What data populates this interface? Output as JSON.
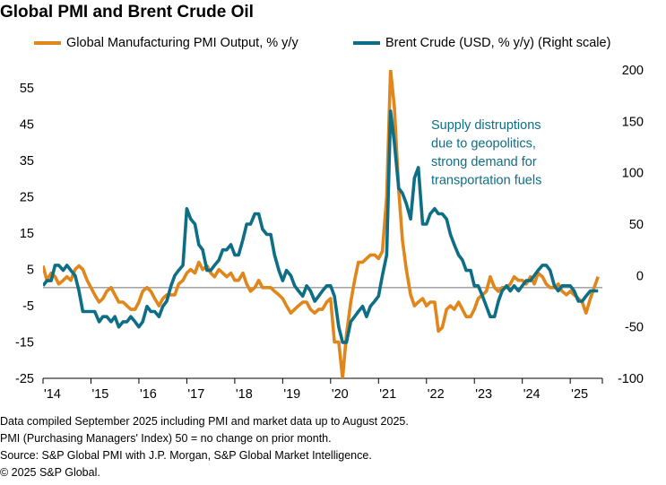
{
  "title": "Global PMI and Brent Crude Oil",
  "legend": {
    "pmi": "Global Manufacturing PMI Output, % y/y",
    "brent": "Brent Crude (USD, % y/y) (Right scale)"
  },
  "colors": {
    "pmi": "#E0861A",
    "brent": "#0E6E86",
    "zero": "#9a9a9a",
    "annotation": "#0E6E86"
  },
  "annotation": [
    "Supply distruptions",
    "due to geopolitics,",
    "strong demand for",
    "transportation fuels"
  ],
  "footer": [
    "Data compiled September 2025 including PMI and market data up to August 2025.",
    "PMI (Purchasing Managers' Index) 50 = no change on prior month.",
    "Source: S&P Global PMI with J.P. Morgan, S&P Global Market Intelligence.",
    "© 2025 S&P Global."
  ],
  "chart_data": {
    "type": "line",
    "title": "Global PMI and Brent Crude Oil",
    "x_tick_labels": [
      "'14",
      "'15",
      "'16",
      "'17",
      "'18",
      "'19",
      "'20",
      "'21",
      "'22",
      "'23",
      "'24",
      "'25"
    ],
    "x_range": [
      2014.0,
      2025.67
    ],
    "y_left": {
      "range": [
        -25,
        60
      ],
      "ticks": [
        -25,
        -15,
        -5,
        5,
        15,
        25,
        35,
        45,
        55
      ]
    },
    "y_right": {
      "range": [
        -100,
        200
      ],
      "ticks": [
        -100,
        -50,
        0,
        50,
        100,
        150,
        200
      ]
    },
    "grid": false,
    "legend_position": "top",
    "series": [
      {
        "name": "Global Manufacturing PMI Output, % y/y",
        "axis": "left",
        "points": [
          [
            2014.0,
            6
          ],
          [
            2014.08,
            2
          ],
          [
            2014.17,
            4
          ],
          [
            2014.25,
            3
          ],
          [
            2014.33,
            1
          ],
          [
            2014.42,
            2
          ],
          [
            2014.5,
            3
          ],
          [
            2014.58,
            2
          ],
          [
            2014.67,
            5
          ],
          [
            2014.75,
            6
          ],
          [
            2014.83,
            5
          ],
          [
            2014.92,
            2
          ],
          [
            2015.0,
            0
          ],
          [
            2015.08,
            -2
          ],
          [
            2015.17,
            -4
          ],
          [
            2015.25,
            -3
          ],
          [
            2015.33,
            -1
          ],
          [
            2015.42,
            0
          ],
          [
            2015.5,
            -2
          ],
          [
            2015.58,
            -4
          ],
          [
            2015.67,
            -4
          ],
          [
            2015.75,
            -5
          ],
          [
            2015.83,
            -6
          ],
          [
            2015.92,
            -6
          ],
          [
            2016.0,
            -4
          ],
          [
            2016.08,
            -1
          ],
          [
            2016.17,
            0
          ],
          [
            2016.25,
            -1
          ],
          [
            2016.33,
            -3
          ],
          [
            2016.42,
            -5
          ],
          [
            2016.5,
            -3
          ],
          [
            2016.58,
            -2
          ],
          [
            2016.67,
            -2
          ],
          [
            2016.75,
            -2
          ],
          [
            2016.83,
            1
          ],
          [
            2016.92,
            2
          ],
          [
            2017.0,
            4
          ],
          [
            2017.08,
            5
          ],
          [
            2017.17,
            4
          ],
          [
            2017.25,
            7
          ],
          [
            2017.33,
            5
          ],
          [
            2017.42,
            6
          ],
          [
            2017.5,
            4
          ],
          [
            2017.58,
            3
          ],
          [
            2017.67,
            5
          ],
          [
            2017.75,
            4
          ],
          [
            2017.83,
            3
          ],
          [
            2017.92,
            4
          ],
          [
            2018.0,
            2
          ],
          [
            2018.08,
            2
          ],
          [
            2018.17,
            4
          ],
          [
            2018.25,
            1
          ],
          [
            2018.33,
            -1
          ],
          [
            2018.42,
            0
          ],
          [
            2018.5,
            2
          ],
          [
            2018.58,
            0
          ],
          [
            2018.67,
            0
          ],
          [
            2018.75,
            0
          ],
          [
            2018.83,
            -1
          ],
          [
            2018.92,
            -2
          ],
          [
            2019.0,
            -3
          ],
          [
            2019.08,
            -5
          ],
          [
            2019.17,
            -7
          ],
          [
            2019.25,
            -6
          ],
          [
            2019.33,
            -5
          ],
          [
            2019.42,
            -4
          ],
          [
            2019.5,
            -4
          ],
          [
            2019.58,
            -6
          ],
          [
            2019.67,
            -7
          ],
          [
            2019.75,
            -6
          ],
          [
            2019.83,
            -6
          ],
          [
            2019.92,
            -4
          ],
          [
            2020.0,
            -3
          ],
          [
            2020.08,
            -15
          ],
          [
            2020.17,
            -15
          ],
          [
            2020.25,
            -25
          ],
          [
            2020.33,
            -13
          ],
          [
            2020.42,
            -4
          ],
          [
            2020.5,
            2
          ],
          [
            2020.58,
            7
          ],
          [
            2020.67,
            7
          ],
          [
            2020.75,
            8
          ],
          [
            2020.83,
            9
          ],
          [
            2020.92,
            9
          ],
          [
            2021.0,
            8
          ],
          [
            2021.08,
            10
          ],
          [
            2021.17,
            25
          ],
          [
            2021.25,
            60
          ],
          [
            2021.33,
            50
          ],
          [
            2021.42,
            27
          ],
          [
            2021.5,
            13
          ],
          [
            2021.58,
            5
          ],
          [
            2021.67,
            -2
          ],
          [
            2021.75,
            -5
          ],
          [
            2021.83,
            -4
          ],
          [
            2021.92,
            -3
          ],
          [
            2022.0,
            -5
          ],
          [
            2022.08,
            -4
          ],
          [
            2022.17,
            -4
          ],
          [
            2022.25,
            -12
          ],
          [
            2022.33,
            -11
          ],
          [
            2022.42,
            -6
          ],
          [
            2022.5,
            -5
          ],
          [
            2022.58,
            -6
          ],
          [
            2022.67,
            -4
          ],
          [
            2022.75,
            -6
          ],
          [
            2022.83,
            -8
          ],
          [
            2022.92,
            -8
          ],
          [
            2023.0,
            -6
          ],
          [
            2023.08,
            -3
          ],
          [
            2023.17,
            -2
          ],
          [
            2023.25,
            -1
          ],
          [
            2023.33,
            3
          ],
          [
            2023.42,
            0
          ],
          [
            2023.5,
            -1
          ],
          [
            2023.58,
            0
          ],
          [
            2023.67,
            0
          ],
          [
            2023.75,
            1
          ],
          [
            2023.83,
            3
          ],
          [
            2023.92,
            2
          ],
          [
            2024.0,
            2
          ],
          [
            2024.08,
            1
          ],
          [
            2024.17,
            3
          ],
          [
            2024.25,
            1
          ],
          [
            2024.33,
            4
          ],
          [
            2024.42,
            3
          ],
          [
            2024.5,
            1
          ],
          [
            2024.58,
            0
          ],
          [
            2024.67,
            0
          ],
          [
            2024.75,
            1
          ],
          [
            2024.83,
            -1
          ],
          [
            2024.92,
            -2
          ],
          [
            2025.0,
            -1
          ],
          [
            2025.08,
            -2
          ],
          [
            2025.17,
            -3
          ],
          [
            2025.25,
            -4
          ],
          [
            2025.33,
            -7
          ],
          [
            2025.42,
            -3
          ],
          [
            2025.5,
            0
          ],
          [
            2025.58,
            3
          ]
        ]
      },
      {
        "name": "Brent Crude (USD, % y/y) (Right scale)",
        "axis": "right",
        "points": [
          [
            2014.0,
            -10
          ],
          [
            2014.08,
            -5
          ],
          [
            2014.17,
            -5
          ],
          [
            2014.25,
            10
          ],
          [
            2014.33,
            10
          ],
          [
            2014.42,
            5
          ],
          [
            2014.5,
            10
          ],
          [
            2014.58,
            5
          ],
          [
            2014.67,
            0
          ],
          [
            2014.75,
            -15
          ],
          [
            2014.83,
            -35
          ],
          [
            2014.92,
            -35
          ],
          [
            2015.0,
            -35
          ],
          [
            2015.08,
            -35
          ],
          [
            2015.17,
            -45
          ],
          [
            2015.25,
            -40
          ],
          [
            2015.33,
            -40
          ],
          [
            2015.42,
            -45
          ],
          [
            2015.5,
            -40
          ],
          [
            2015.58,
            -50
          ],
          [
            2015.67,
            -45
          ],
          [
            2015.75,
            -45
          ],
          [
            2015.83,
            -40
          ],
          [
            2015.92,
            -45
          ],
          [
            2016.0,
            -50
          ],
          [
            2016.08,
            -45
          ],
          [
            2016.17,
            -30
          ],
          [
            2016.25,
            -35
          ],
          [
            2016.33,
            -35
          ],
          [
            2016.42,
            -40
          ],
          [
            2016.5,
            -30
          ],
          [
            2016.58,
            -25
          ],
          [
            2016.67,
            -10
          ],
          [
            2016.75,
            0
          ],
          [
            2016.83,
            5
          ],
          [
            2016.92,
            10
          ],
          [
            2017.0,
            65
          ],
          [
            2017.08,
            55
          ],
          [
            2017.17,
            50
          ],
          [
            2017.25,
            30
          ],
          [
            2017.33,
            25
          ],
          [
            2017.42,
            5
          ],
          [
            2017.5,
            5
          ],
          [
            2017.58,
            10
          ],
          [
            2017.67,
            15
          ],
          [
            2017.75,
            25
          ],
          [
            2017.83,
            25
          ],
          [
            2017.92,
            30
          ],
          [
            2018.0,
            20
          ],
          [
            2018.08,
            20
          ],
          [
            2018.17,
            35
          ],
          [
            2018.25,
            50
          ],
          [
            2018.33,
            50
          ],
          [
            2018.42,
            60
          ],
          [
            2018.5,
            60
          ],
          [
            2018.58,
            45
          ],
          [
            2018.67,
            40
          ],
          [
            2018.75,
            40
          ],
          [
            2018.83,
            20
          ],
          [
            2018.92,
            5
          ],
          [
            2019.0,
            -5
          ],
          [
            2019.08,
            5
          ],
          [
            2019.17,
            0
          ],
          [
            2019.25,
            -10
          ],
          [
            2019.33,
            -15
          ],
          [
            2019.42,
            -20
          ],
          [
            2019.5,
            -10
          ],
          [
            2019.58,
            -15
          ],
          [
            2019.67,
            -25
          ],
          [
            2019.75,
            -20
          ],
          [
            2019.83,
            -15
          ],
          [
            2019.92,
            -10
          ],
          [
            2020.0,
            -10
          ],
          [
            2020.08,
            -20
          ],
          [
            2020.17,
            -50
          ],
          [
            2020.25,
            -65
          ],
          [
            2020.33,
            -65
          ],
          [
            2020.42,
            -45
          ],
          [
            2020.5,
            -40
          ],
          [
            2020.58,
            -35
          ],
          [
            2020.67,
            -30
          ],
          [
            2020.75,
            -40
          ],
          [
            2020.83,
            -30
          ],
          [
            2020.92,
            -25
          ],
          [
            2021.0,
            -20
          ],
          [
            2021.08,
            0
          ],
          [
            2021.17,
            20
          ],
          [
            2021.25,
            160
          ],
          [
            2021.33,
            130
          ],
          [
            2021.42,
            85
          ],
          [
            2021.5,
            80
          ],
          [
            2021.58,
            70
          ],
          [
            2021.67,
            55
          ],
          [
            2021.75,
            95
          ],
          [
            2021.83,
            105
          ],
          [
            2021.92,
            50
          ],
          [
            2022.0,
            50
          ],
          [
            2022.08,
            60
          ],
          [
            2022.17,
            65
          ],
          [
            2022.25,
            60
          ],
          [
            2022.33,
            60
          ],
          [
            2022.42,
            55
          ],
          [
            2022.5,
            40
          ],
          [
            2022.58,
            30
          ],
          [
            2022.67,
            20
          ],
          [
            2022.75,
            15
          ],
          [
            2022.83,
            5
          ],
          [
            2022.92,
            5
          ],
          [
            2023.0,
            -10
          ],
          [
            2023.08,
            -10
          ],
          [
            2023.17,
            -20
          ],
          [
            2023.25,
            -30
          ],
          [
            2023.33,
            -40
          ],
          [
            2023.42,
            -40
          ],
          [
            2023.5,
            -25
          ],
          [
            2023.58,
            -15
          ],
          [
            2023.67,
            -10
          ],
          [
            2023.75,
            -15
          ],
          [
            2023.83,
            -10
          ],
          [
            2023.92,
            -15
          ],
          [
            2024.0,
            -10
          ],
          [
            2024.08,
            -5
          ],
          [
            2024.17,
            -5
          ],
          [
            2024.25,
            0
          ],
          [
            2024.33,
            5
          ],
          [
            2024.42,
            10
          ],
          [
            2024.5,
            10
          ],
          [
            2024.58,
            5
          ],
          [
            2024.67,
            -10
          ],
          [
            2024.75,
            -15
          ],
          [
            2024.83,
            -10
          ],
          [
            2024.92,
            -10
          ],
          [
            2025.0,
            -10
          ],
          [
            2025.08,
            -15
          ],
          [
            2025.17,
            -25
          ],
          [
            2025.25,
            -25
          ],
          [
            2025.33,
            -20
          ],
          [
            2025.42,
            -15
          ],
          [
            2025.5,
            -15
          ],
          [
            2025.58,
            -15
          ]
        ]
      }
    ]
  }
}
